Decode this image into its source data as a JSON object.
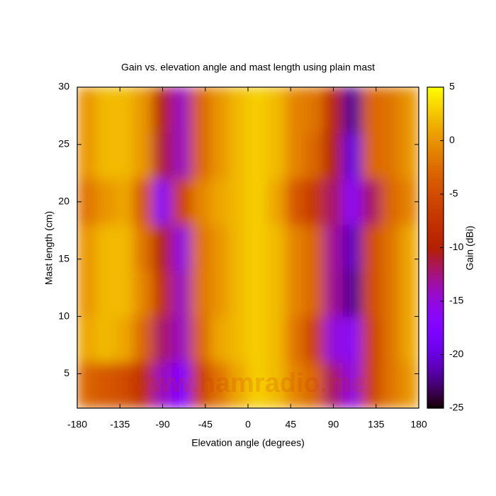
{
  "chart_data": {
    "type": "heatmap",
    "title": "Gain vs. elevation angle and mast length using plain mast",
    "x_label": "Elevation angle (degrees)",
    "y_label": "Mast length (cm)",
    "colorbar_label": "Gain (dBi)",
    "watermark": "www.hamradio.me",
    "x": [
      -170,
      -150,
      -130,
      -110,
      -90,
      -70,
      -50,
      -30,
      -10,
      10,
      30,
      50,
      70,
      90,
      110,
      130,
      150,
      170
    ],
    "y": [
      4,
      8,
      12,
      16,
      20,
      24,
      28
    ],
    "z": [
      [
        -3,
        -4,
        -5,
        -8,
        -14,
        -17,
        -6,
        -2,
        1,
        3,
        2,
        -1,
        -3,
        -12,
        -15,
        -6,
        -2,
        0
      ],
      [
        1,
        2,
        1,
        -3,
        -12,
        -14,
        -3,
        1,
        2,
        3,
        2,
        -2,
        -6,
        -15,
        -16,
        -6,
        -2,
        1
      ],
      [
        0,
        2,
        2,
        -1,
        -8,
        -14,
        -2,
        0,
        2,
        3,
        2,
        -1,
        -3,
        -13,
        -22,
        -5,
        -2,
        1
      ],
      [
        0,
        2,
        2,
        -2,
        -10,
        -15,
        -2,
        0,
        2,
        3,
        2,
        -1,
        -3,
        -13,
        -21,
        -5,
        -2,
        1
      ],
      [
        -2,
        0,
        1,
        -4,
        -16,
        -6,
        -1,
        1,
        2,
        3,
        1,
        -4,
        -7,
        -12,
        -16,
        -12,
        -3,
        -1
      ],
      [
        0,
        2,
        2,
        0,
        -11,
        -14,
        -3,
        0,
        2,
        3,
        2,
        -1,
        -3,
        -10,
        -20,
        -3,
        -2,
        0
      ],
      [
        0,
        2,
        2,
        0,
        -10,
        -14,
        -3,
        0,
        2,
        3,
        2,
        -1,
        -2,
        -9,
        -22,
        -3,
        -2,
        0
      ]
    ],
    "xlim": [
      -180,
      180
    ],
    "ylim": [
      2,
      30
    ],
    "zlim": [
      -25,
      5
    ],
    "xticks": [
      -180,
      -135,
      -90,
      -45,
      0,
      45,
      90,
      135,
      180
    ],
    "yticks": [
      5,
      10,
      15,
      20,
      25,
      30
    ],
    "zticks": [
      -25,
      -20,
      -15,
      -10,
      -5,
      0,
      5
    ],
    "colormap": "gnuplot"
  }
}
